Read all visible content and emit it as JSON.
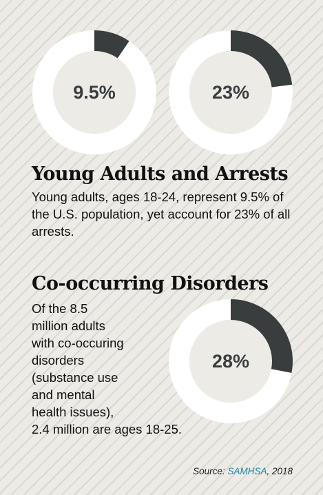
{
  "chart_data": [
    {
      "type": "pie",
      "label": "9.5%",
      "values": [
        9.5
      ],
      "colors": {
        "slice": "#3a3d3e",
        "track": "#ffffff",
        "center": "#ecebe6"
      }
    },
    {
      "type": "pie",
      "label": "23%",
      "values": [
        23
      ],
      "colors": {
        "slice": "#3a3d3e",
        "track": "#ffffff",
        "center": "#ecebe6"
      }
    },
    {
      "type": "pie",
      "label": "28%",
      "values": [
        28
      ],
      "colors": {
        "slice": "#3a3d3e",
        "track": "#ffffff",
        "center": "#ecebe6"
      }
    }
  ],
  "section1": {
    "title": "Young Adults and Arrests",
    "body": "Young adults, ages 18-24, represent 9.5% of the U.S. population, yet account for 23% of all arrests."
  },
  "section2": {
    "title": "Co-occurring Disorders",
    "lines": [
      "Of the 8.5",
      "million adults",
      "with co-occuring",
      "disorders",
      "(substance use",
      "and mental",
      "health issues),",
      "2.4 million are ages 18-25."
    ]
  },
  "source": {
    "prefix": "Source: ",
    "link": "SAMHSA",
    "suffix": ", 2018"
  }
}
